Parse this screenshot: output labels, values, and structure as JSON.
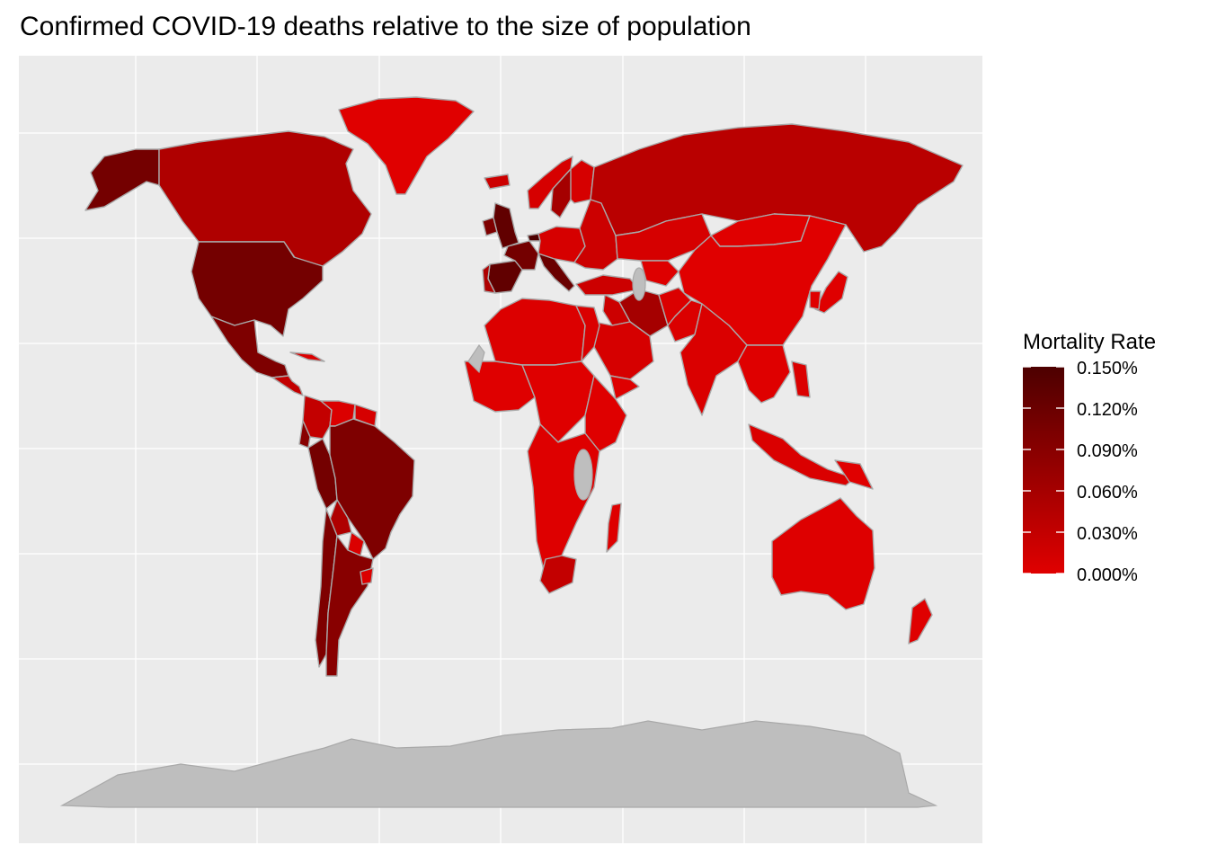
{
  "title": "Confirmed COVID-19 deaths relative to the size of population",
  "map": {
    "background_color": "#ebebeb",
    "gridline_color": "#ffffff",
    "no_data_color": "#bebebe",
    "border_color": "#a9a9a9",
    "ocean": "none",
    "countries": [
      {
        "name": "Alaska (USA)",
        "rate": 0.11
      },
      {
        "name": "Canada",
        "rate": 0.05
      },
      {
        "name": "Greenland",
        "rate": 0.0
      },
      {
        "name": "United States",
        "rate": 0.11
      },
      {
        "name": "Mexico",
        "rate": 0.1
      },
      {
        "name": "Central America",
        "rate": 0.03
      },
      {
        "name": "Cuba",
        "rate": 0.005
      },
      {
        "name": "Colombia",
        "rate": 0.03
      },
      {
        "name": "Venezuela",
        "rate": 0.005
      },
      {
        "name": "Guyana",
        "rate": 0.01
      },
      {
        "name": "Ecuador",
        "rate": 0.09
      },
      {
        "name": "Peru",
        "rate": 0.11
      },
      {
        "name": "Brazil",
        "rate": 0.1
      },
      {
        "name": "Bolivia",
        "rate": 0.05
      },
      {
        "name": "Paraguay",
        "rate": 0.005
      },
      {
        "name": "Chile",
        "rate": 0.1
      },
      {
        "name": "Argentina",
        "rate": 0.09
      },
      {
        "name": "Uruguay",
        "rate": 0.005
      },
      {
        "name": "Iceland",
        "rate": 0.02
      },
      {
        "name": "Ireland",
        "rate": 0.1
      },
      {
        "name": "United Kingdom",
        "rate": 0.13
      },
      {
        "name": "Spain",
        "rate": 0.13
      },
      {
        "name": "Portugal",
        "rate": 0.05
      },
      {
        "name": "France",
        "rate": 0.11
      },
      {
        "name": "Italy",
        "rate": 0.12
      },
      {
        "name": "Belgium",
        "rate": 0.15
      },
      {
        "name": "Norway",
        "rate": 0.01
      },
      {
        "name": "Sweden",
        "rate": 0.06
      },
      {
        "name": "Finland",
        "rate": 0.01
      },
      {
        "name": "Central Europe",
        "rate": 0.01
      },
      {
        "name": "Eastern Europe",
        "rate": 0.02
      },
      {
        "name": "Russia",
        "rate": 0.04
      },
      {
        "name": "Kazakhstan",
        "rate": 0.01
      },
      {
        "name": "Central Asia",
        "rate": 0.002
      },
      {
        "name": "Mongolia",
        "rate": 0.0
      },
      {
        "name": "China",
        "rate": 0.0
      },
      {
        "name": "Turkey",
        "rate": 0.02
      },
      {
        "name": "Iran",
        "rate": 0.06
      },
      {
        "name": "Iraq",
        "rate": 0.02
      },
      {
        "name": "Saudi Arabia",
        "rate": 0.01
      },
      {
        "name": "Yemen",
        "rate": 0.002
      },
      {
        "name": "Afghanistan",
        "rate": 0.005
      },
      {
        "name": "Pakistan",
        "rate": 0.005
      },
      {
        "name": "India",
        "rate": 0.006
      },
      {
        "name": "Southeast Asia",
        "rate": 0.001
      },
      {
        "name": "Indonesia",
        "rate": 0.006
      },
      {
        "name": "Philippines",
        "rate": 0.005
      },
      {
        "name": "Japan",
        "rate": 0.001
      },
      {
        "name": "South Korea",
        "rate": 0.001
      },
      {
        "name": "North Africa",
        "rate": 0.004
      },
      {
        "name": "Egypt",
        "rate": 0.006
      },
      {
        "name": "West Africa",
        "rate": 0.001
      },
      {
        "name": "Central Africa",
        "rate": 0.001
      },
      {
        "name": "East Africa",
        "rate": 0.001
      },
      {
        "name": "Southern Africa",
        "rate": 0.002
      },
      {
        "name": "South Africa",
        "rate": 0.03
      },
      {
        "name": "Madagascar",
        "rate": 0.002
      },
      {
        "name": "Australia",
        "rate": 0.002
      },
      {
        "name": "New Zealand",
        "rate": 0.001
      },
      {
        "name": "Papua New Guinea",
        "rate": 0.0
      }
    ]
  },
  "legend": {
    "title": "Mortality Rate",
    "colors": {
      "low": "#e00000",
      "high": "#4d0000"
    },
    "ticks": [
      "0.150%",
      "0.120%",
      "0.090%",
      "0.060%",
      "0.030%",
      "0.000%"
    ],
    "domain": [
      0.0,
      0.15
    ]
  }
}
